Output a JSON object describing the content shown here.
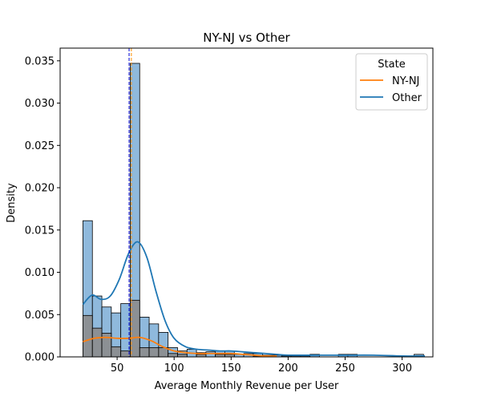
{
  "chart_data": {
    "type": "bar",
    "title": "NY-NJ vs Other",
    "xlabel": "Average Monthly Revenue per User",
    "ylabel": "Density",
    "xlim": [
      0,
      327
    ],
    "ylim": [
      0,
      0.0365
    ],
    "x_ticks": [
      50,
      100,
      150,
      200,
      250,
      300
    ],
    "y_ticks": [
      0.0,
      0.005,
      0.01,
      0.015,
      0.02,
      0.025,
      0.03,
      0.035
    ],
    "y_tick_labels": [
      "0.000",
      "0.005",
      "0.010",
      "0.015",
      "0.020",
      "0.025",
      "0.030",
      "0.035"
    ],
    "bin_start": 20,
    "bin_width": 8.3,
    "legend": {
      "title": "State",
      "placement": "top-right",
      "entries": [
        "NY-NJ",
        "Other"
      ]
    },
    "series": [
      {
        "name": "Other",
        "color": "#1f77b4",
        "bar_fill": "#8fb9dc",
        "values": [
          0.0161,
          0.0072,
          0.0059,
          0.0052,
          0.0063,
          0.0347,
          0.0047,
          0.0039,
          0.0029,
          0.0011,
          0.0007,
          0.0009,
          0.0005,
          0.0006,
          0.0007,
          0.0007,
          0.0003,
          0.0004,
          0.0004,
          0.0002,
          0.0002,
          0.0001,
          0.0001,
          0.0001,
          0.0003,
          0.0,
          0.0,
          0.0003,
          0.0003,
          0.0,
          0.0,
          0.0,
          0.0,
          0.0,
          0.0,
          0.0003
        ],
        "kde": [
          [
            20,
            0.0062
          ],
          [
            28,
            0.0073
          ],
          [
            36,
            0.0068
          ],
          [
            44,
            0.0072
          ],
          [
            52,
            0.0092
          ],
          [
            60,
            0.0122
          ],
          [
            68,
            0.0136
          ],
          [
            76,
            0.0118
          ],
          [
            84,
            0.0078
          ],
          [
            92,
            0.0043
          ],
          [
            100,
            0.0022
          ],
          [
            110,
            0.0012
          ],
          [
            120,
            0.0009
          ],
          [
            130,
            0.0008
          ],
          [
            140,
            0.0007
          ],
          [
            150,
            0.0007
          ],
          [
            160,
            0.0006
          ],
          [
            170,
            0.0005
          ],
          [
            180,
            0.0004
          ],
          [
            190,
            0.0003
          ],
          [
            200,
            0.0002
          ],
          [
            225,
            0.0002
          ],
          [
            250,
            0.0002
          ],
          [
            275,
            0.0002
          ],
          [
            300,
            0.0001
          ],
          [
            320,
            0.0001
          ]
        ],
        "mean": 60.5
      },
      {
        "name": "NY-NJ",
        "color": "#ff7f0e",
        "bar_fill": "#8c8c8c",
        "values": [
          0.0049,
          0.0034,
          0.0028,
          0.0012,
          0.0007,
          0.0067,
          0.0011,
          0.0011,
          0.0011,
          0.0004,
          0.0003,
          0.0,
          0.0003,
          0.0,
          0.0003,
          0.0003,
          0.0,
          0.0,
          0.0001,
          0.0,
          0.0,
          0.0,
          0.0,
          0.0,
          0.0,
          0.0,
          0.0,
          0.0,
          0.0,
          0.0,
          0.0,
          0.0,
          0.0,
          0.0,
          0.0,
          0.0
        ],
        "kde": [
          [
            20,
            0.0018
          ],
          [
            30,
            0.0022
          ],
          [
            40,
            0.0023
          ],
          [
            50,
            0.0022
          ],
          [
            60,
            0.0022
          ],
          [
            70,
            0.0023
          ],
          [
            80,
            0.0019
          ],
          [
            90,
            0.0012
          ],
          [
            100,
            0.0007
          ],
          [
            110,
            0.0005
          ],
          [
            120,
            0.0004
          ],
          [
            130,
            0.0004
          ],
          [
            140,
            0.0004
          ],
          [
            150,
            0.0004
          ],
          [
            160,
            0.0003
          ],
          [
            170,
            0.0002
          ],
          [
            180,
            0.0001
          ],
          [
            190,
            0.0001
          ]
        ],
        "mean": 62.5
      }
    ]
  }
}
